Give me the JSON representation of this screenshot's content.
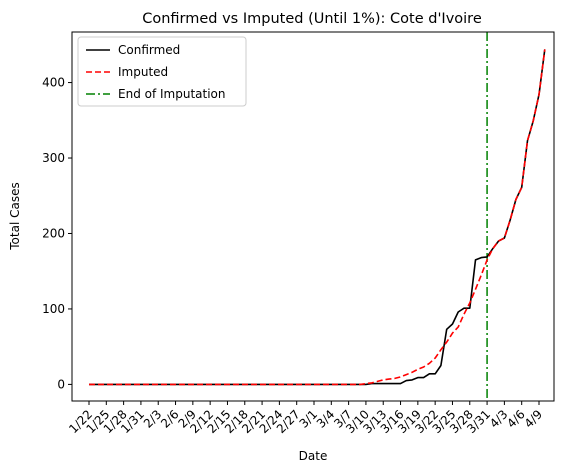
{
  "chart_data": {
    "type": "line",
    "title": "Confirmed vs Imputed (Until 1%): Cote d'Ivoire",
    "xlabel": "Date",
    "ylabel": "Total Cases",
    "x_tick_labels": [
      "1/22",
      "1/25",
      "1/28",
      "1/31",
      "2/3",
      "2/6",
      "2/9",
      "2/12",
      "2/15",
      "2/18",
      "2/21",
      "2/24",
      "2/27",
      "3/1",
      "3/4",
      "3/7",
      "3/10",
      "3/13",
      "3/16",
      "3/19",
      "3/22",
      "3/25",
      "3/28",
      "3/31",
      "4/3",
      "4/6",
      "4/9"
    ],
    "y_ticks": [
      0,
      100,
      200,
      300,
      400
    ],
    "ylim": [
      -22,
      467
    ],
    "x_start": "1/22",
    "x_end": "4/9",
    "grid": false,
    "legend_position": "top-left",
    "series": [
      {
        "name": "Confirmed",
        "style": "solid",
        "color": "#000000",
        "points": [
          [
            "1/22",
            0
          ],
          [
            "3/10",
            0
          ],
          [
            "3/11",
            1
          ],
          [
            "3/12",
            1
          ],
          [
            "3/13",
            1
          ],
          [
            "3/14",
            1
          ],
          [
            "3/15",
            1
          ],
          [
            "3/16",
            1
          ],
          [
            "3/17",
            5
          ],
          [
            "3/18",
            6
          ],
          [
            "3/19",
            9
          ],
          [
            "3/20",
            9
          ],
          [
            "3/21",
            14
          ],
          [
            "3/22",
            14
          ],
          [
            "3/23",
            25
          ],
          [
            "3/24",
            73
          ],
          [
            "3/25",
            80
          ],
          [
            "3/26",
            96
          ],
          [
            "3/27",
            101
          ],
          [
            "3/28",
            101
          ],
          [
            "3/29",
            165
          ],
          [
            "3/30",
            168
          ],
          [
            "3/31",
            169
          ],
          [
            "4/1",
            180
          ],
          [
            "4/2",
            190
          ],
          [
            "4/3",
            194
          ],
          [
            "4/4",
            218
          ],
          [
            "4/5",
            245
          ],
          [
            "4/6",
            261
          ],
          [
            "4/7",
            323
          ],
          [
            "4/8",
            349
          ],
          [
            "4/9",
            384
          ],
          [
            "4/10",
            444
          ]
        ]
      },
      {
        "name": "Imputed",
        "style": "dashed",
        "color": "#ff0000",
        "points": [
          [
            "1/22",
            0
          ],
          [
            "3/9",
            0
          ],
          [
            "3/10",
            1
          ],
          [
            "3/11",
            2
          ],
          [
            "3/12",
            4
          ],
          [
            "3/13",
            6
          ],
          [
            "3/14",
            7
          ],
          [
            "3/15",
            8
          ],
          [
            "3/16",
            10
          ],
          [
            "3/17",
            13
          ],
          [
            "3/18",
            16
          ],
          [
            "3/19",
            20
          ],
          [
            "3/20",
            23
          ],
          [
            "3/21",
            28
          ],
          [
            "3/22",
            35
          ],
          [
            "3/23",
            46
          ],
          [
            "3/24",
            56
          ],
          [
            "3/25",
            68
          ],
          [
            "3/26",
            76
          ],
          [
            "3/27",
            93
          ],
          [
            "3/28",
            108
          ],
          [
            "3/29",
            126
          ],
          [
            "3/30",
            145
          ],
          [
            "3/31",
            165
          ],
          [
            "4/1",
            180
          ],
          [
            "4/2",
            190
          ],
          [
            "4/3",
            194
          ],
          [
            "4/4",
            218
          ],
          [
            "4/5",
            245
          ],
          [
            "4/6",
            261
          ],
          [
            "4/7",
            323
          ],
          [
            "4/8",
            349
          ],
          [
            "4/9",
            384
          ],
          [
            "4/10",
            444
          ]
        ]
      }
    ],
    "vertical_line": {
      "name": "End of Imputation",
      "x": "3/31",
      "style": "dashdot",
      "color": "#008000"
    }
  }
}
